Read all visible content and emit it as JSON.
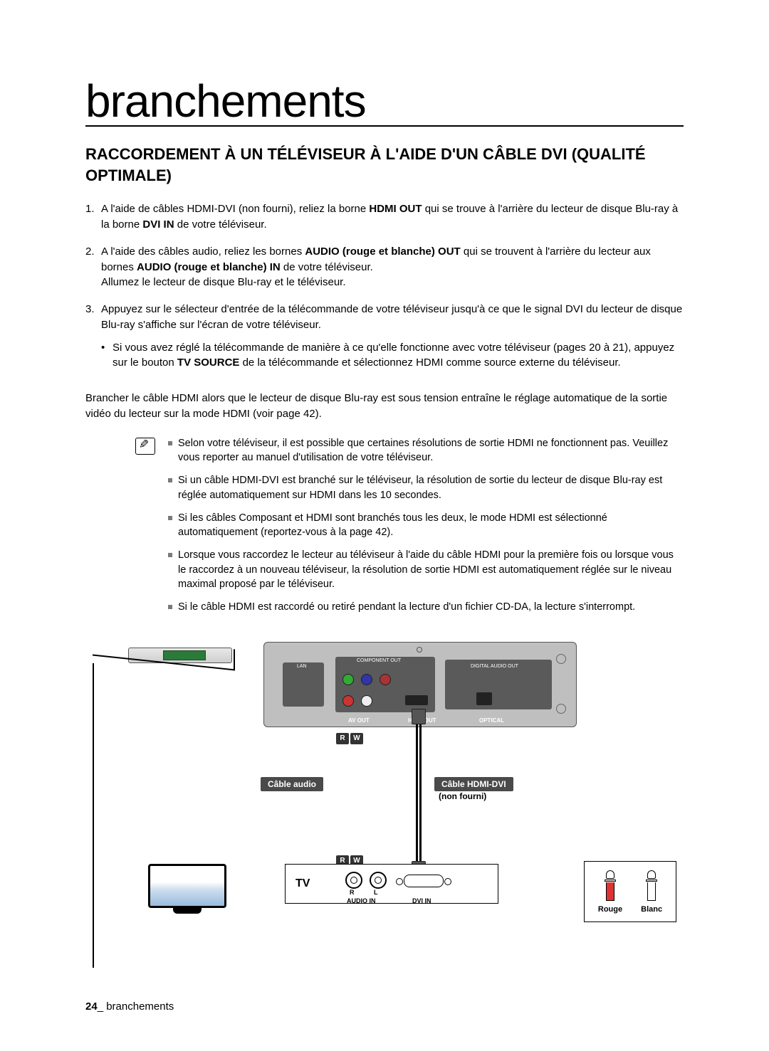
{
  "page": {
    "title": "branchements",
    "sectionHeading": "RACCORDEMENT À UN TÉLÉVISEUR À L'AIDE D'UN CÂBLE DVI (QUALITÉ OPTIMALE)",
    "pageNumber": "24",
    "footerLabel": "branchements"
  },
  "steps": {
    "s1a": "A l'aide de câbles HDMI-DVI (non fourni), reliez la borne ",
    "s1b": "HDMI OUT",
    "s1c": " qui se trouve à l'arrière du lecteur de disque Blu-ray à la borne ",
    "s1d": "DVI IN",
    "s1e": " de votre téléviseur.",
    "s2a": "A l'aide des câbles audio, reliez les bornes ",
    "s2b": "AUDIO (rouge et blanche) OUT",
    "s2c": " qui se trouvent à l'arrière du lecteur aux bornes ",
    "s2d": "AUDIO (rouge et blanche) IN",
    "s2e": " de votre téléviseur.",
    "s2f": "Allumez le lecteur de disque Blu-ray et le téléviseur.",
    "s3": "Appuyez sur le sélecteur d'entrée de la télécommande de votre téléviseur jusqu'à ce que le signal DVI du lecteur de disque Blu-ray s'affiche sur l'écran de votre téléviseur.",
    "s3sub_a": "Si vous avez réglé la télécommande de manière à ce qu'elle fonctionne avec votre téléviseur (pages 20 à 21), appuyez sur le bouton ",
    "s3sub_b": "TV SOURCE",
    "s3sub_c": " de la télécommande et sélectionnez HDMI comme source externe du téléviseur."
  },
  "paragraph": "Brancher le câble HDMI alors que le lecteur de disque Blu-ray est sous tension entraîne le réglage automatique de la sortie vidéo du lecteur sur la mode HDMI (voir page 42).",
  "notes": {
    "n1": "Selon votre téléviseur, il est possible que certaines résolutions de sortie HDMI ne fonctionnent pas. Veuillez vous reporter au manuel d'utilisation de votre téléviseur.",
    "n2": "Si un câble HDMI-DVI est branché sur le téléviseur, la résolution de sortie du lecteur de disque Blu-ray est réglée automatiquement sur HDMI dans les 10 secondes.",
    "n3": "Si les câbles Composant et HDMI sont branchés tous les deux, le mode HDMI est sélectionné automatiquement (reportez-vous à la page 42).",
    "n4": "Lorsque vous raccordez le lecteur au téléviseur à l'aide du câble HDMI pour la première fois ou lorsque vous le raccordez à un nouveau téléviseur, la résolution de sortie HDMI est automatiquement réglée sur le niveau maximal proposé par le téléviseur.",
    "n5": "Si le câble HDMI est raccordé ou retiré pendant la lecture d'un fichier CD-DA, la lecture s'interrompt."
  },
  "diagram": {
    "calloutAudio": "Câble audio",
    "calloutHdmi": "Câble HDMI-DVI",
    "calloutHdmiSub": "(non fourni)",
    "tvLabel": "TV",
    "audioInLabel": "AUDIO IN",
    "dviInLabel": "DVI IN",
    "rcaRLabel": "R",
    "rcaLLabel": "L",
    "rw_R": "R",
    "rw_W": "W",
    "legendRouge": "Rouge",
    "legendBlanc": "Blanc",
    "pbLan": "LAN",
    "pbComp": "COMPONENT OUT",
    "pbDigi": "DIGITAL AUDIO OUT",
    "pbAvout": "AV OUT",
    "pbHdmi": "HDMI OUT",
    "pbOpt": "OPTICAL",
    "colors": {
      "calloutBg": "#4a4a4a",
      "panelBg": "#bfbfbf",
      "subpanelBg": "#5a5a5a",
      "redPlug": "#d33",
      "whitePlug": "#ffffff",
      "displayGreen": "#2b7a3a"
    }
  }
}
